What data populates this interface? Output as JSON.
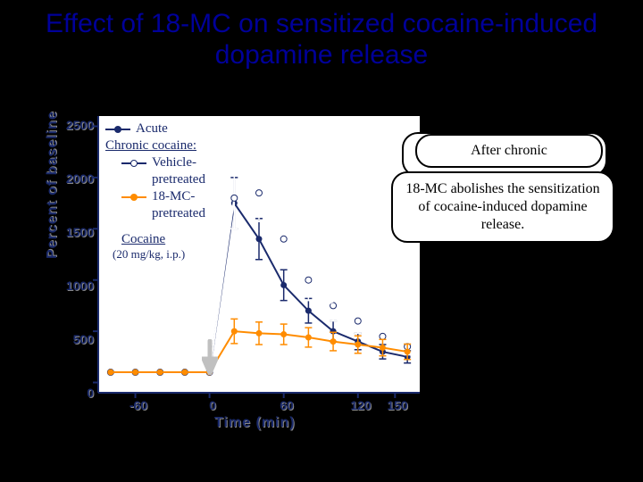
{
  "title": "Effect of 18-MC on sensitized cocaine-induced dopamine release",
  "title_fontsize": 30,
  "title_color": "#000099",
  "background_color": "#000000",
  "chart": {
    "type": "line-errorbar",
    "plot_background": "#ffffff",
    "xlabel": "Time (min)",
    "ylabel": "Percent of baseline",
    "label_fontsize": 16,
    "label_color": "#1a2a6c",
    "xlim": [
      -90,
      170
    ],
    "ylim": [
      -100,
      2600
    ],
    "xticks": [
      -60,
      0,
      60,
      120,
      150
    ],
    "yticks": [
      0,
      500,
      1000,
      1500,
      2000,
      2500
    ],
    "tick_fontsize": 14,
    "marker_size": 7,
    "line_width": 2,
    "errorbar_capwidth": 8,
    "series": [
      {
        "name": "Acute",
        "color": "#1a2a6c",
        "marker": "circle",
        "x": [
          -80,
          -60,
          -40,
          -20,
          0,
          20,
          40,
          60,
          80,
          100,
          120,
          140,
          160
        ],
        "y": [
          100,
          100,
          100,
          100,
          100,
          1750,
          1400,
          950,
          700,
          500,
          400,
          300,
          250
        ],
        "err": [
          0,
          0,
          0,
          0,
          0,
          250,
          200,
          150,
          120,
          100,
          80,
          70,
          60
        ]
      },
      {
        "name": "Vehicle-pretreated",
        "color": "#ffffff",
        "marker": "circle",
        "x": [
          -80,
          -60,
          -40,
          -20,
          0,
          20,
          40,
          60,
          80,
          100,
          120,
          140,
          160
        ],
        "y": [
          100,
          100,
          100,
          100,
          100,
          1800,
          1850,
          1400,
          1000,
          750,
          600,
          450,
          350
        ],
        "err": [
          0,
          0,
          0,
          0,
          0,
          300,
          280,
          250,
          200,
          150,
          120,
          100,
          80
        ]
      },
      {
        "name": "18-MC-pretreated",
        "color": "#ff8c00",
        "marker": "circle",
        "x": [
          -80,
          -60,
          -40,
          -20,
          0,
          20,
          40,
          60,
          80,
          100,
          120,
          140,
          160
        ],
        "y": [
          100,
          100,
          100,
          100,
          100,
          500,
          480,
          470,
          440,
          400,
          370,
          340,
          300
        ],
        "err": [
          0,
          0,
          0,
          0,
          0,
          120,
          110,
          100,
          95,
          90,
          85,
          80,
          75
        ]
      }
    ],
    "injection_arrow": {
      "x": 0,
      "color": "#c0c0c0"
    },
    "legend": {
      "position": "inside-top-left",
      "heading1": "Acute",
      "heading2": "Chronic cocaine:",
      "items": [
        {
          "label": "Acute",
          "color": "#1a2a6c"
        },
        {
          "label": "Vehicle-\npretreated",
          "color": "#ffffff"
        },
        {
          "label": "18-MC-\npretreated",
          "color": "#ff8c00"
        }
      ],
      "note": "Cocaine\n(20 mg/kg, i.p.)",
      "fontsize": 15
    }
  },
  "callouts": {
    "back": {
      "text": "After chronic",
      "fontsize": 16
    },
    "front": {
      "text": "18-MC abolishes the sensitization of cocaine-induced dopamine release.",
      "fontsize": 16
    }
  }
}
